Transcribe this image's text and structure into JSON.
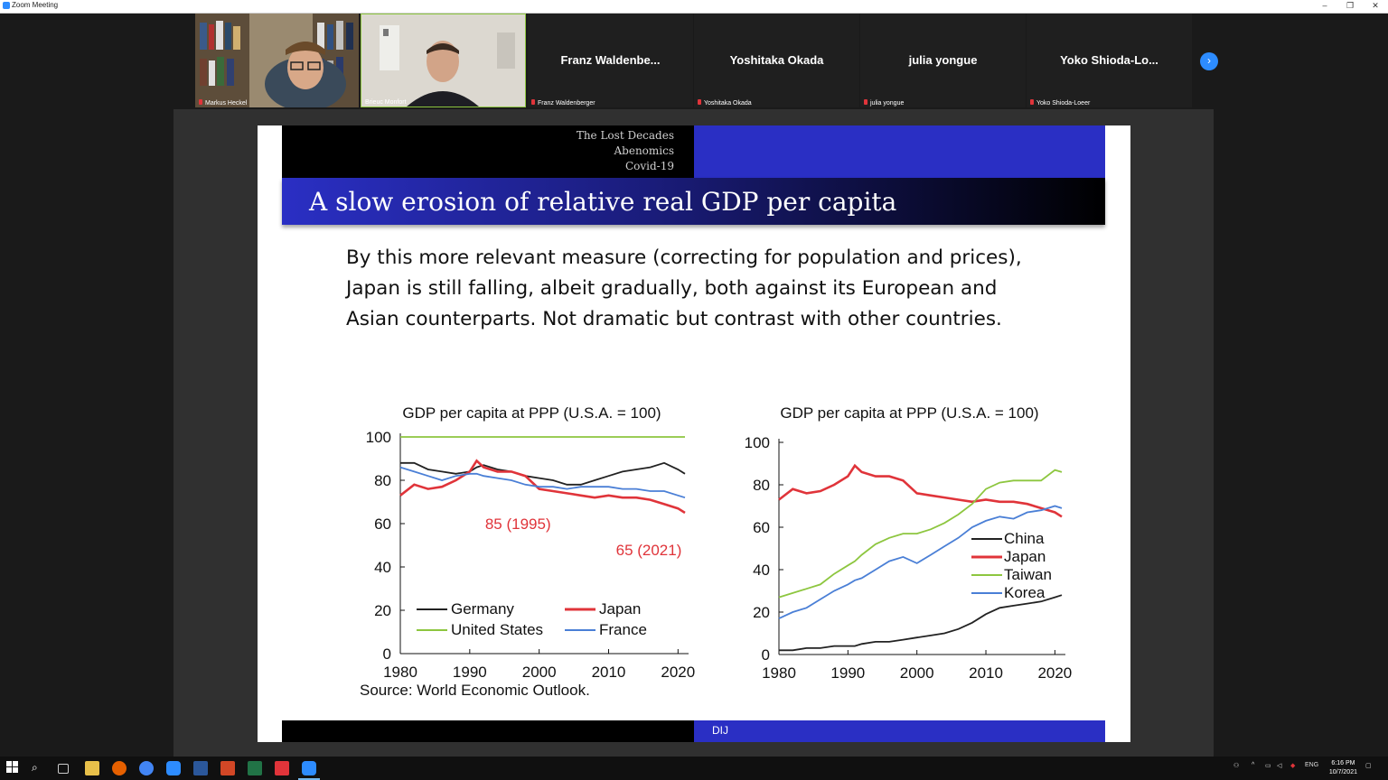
{
  "window": {
    "title": "Zoom Meeting",
    "min": "–",
    "restore": "❐",
    "close": "✕"
  },
  "participants": [
    {
      "label": "Markus Heckel"
    },
    {
      "label": "Brieuc Monfort"
    },
    {
      "display": "Franz  Waldenbe...",
      "label": "Franz Waldenberger"
    },
    {
      "display": "Yoshitaka Okada",
      "label": "Yoshitaka Okada"
    },
    {
      "display": "julia yongue",
      "label": "julia yongue"
    },
    {
      "display": "Yoko  Shioda-Lo...",
      "label": "Yoko Shioda-Loeer"
    }
  ],
  "gallery_next_icon": "chevron-right-icon",
  "slide": {
    "sections": [
      "The Lost Decades",
      "Abenomics",
      "Covid-19"
    ],
    "title": "A slow erosion of relative real GDP per capita",
    "body": "By this more relevant measure (correcting for population and prices), Japan is still falling, albeit gradually, both against its European and Asian counterparts. Not dramatic but contrast with other countries.",
    "footer": "DIJ",
    "source": "Source: World Economic Outlook."
  },
  "chart_data": [
    {
      "type": "line",
      "title": "GDP per capita at PPP (U.S.A. = 100)",
      "xlim": [
        1980,
        2021
      ],
      "ylim": [
        0,
        100
      ],
      "xticks": [
        1980,
        1990,
        2000,
        2010,
        2020
      ],
      "yticks": [
        0,
        20,
        40,
        60,
        80,
        100
      ],
      "annotations": [
        {
          "text": "85 (1995)",
          "color": "#e0343a"
        },
        {
          "text": "65 (2021)",
          "color": "#e0343a"
        }
      ],
      "legend": [
        "Germany",
        "Japan",
        "United States",
        "France"
      ],
      "legend_position": "bottom",
      "x": [
        1980,
        1982,
        1984,
        1986,
        1988,
        1990,
        1991,
        1992,
        1994,
        1996,
        1998,
        2000,
        2002,
        2004,
        2006,
        2008,
        2010,
        2012,
        2014,
        2016,
        2018,
        2020,
        2021
      ],
      "series": [
        {
          "name": "Germany",
          "color": "#222222",
          "values": [
            88,
            88,
            85,
            84,
            83,
            84,
            86,
            87,
            85,
            84,
            82,
            81,
            80,
            78,
            78,
            80,
            82,
            84,
            85,
            86,
            88,
            85,
            83
          ]
        },
        {
          "name": "Japan",
          "color": "#e0343a",
          "values": [
            73,
            78,
            76,
            77,
            80,
            84,
            89,
            86,
            84,
            84,
            82,
            76,
            75,
            74,
            73,
            72,
            73,
            72,
            72,
            71,
            69,
            67,
            65
          ]
        },
        {
          "name": "United States",
          "color": "#8dc63f",
          "values": [
            100,
            100,
            100,
            100,
            100,
            100,
            100,
            100,
            100,
            100,
            100,
            100,
            100,
            100,
            100,
            100,
            100,
            100,
            100,
            100,
            100,
            100,
            100
          ]
        },
        {
          "name": "France",
          "color": "#4a7fd6",
          "values": [
            86,
            84,
            82,
            80,
            82,
            83,
            83,
            82,
            81,
            80,
            78,
            77,
            77,
            76,
            77,
            77,
            77,
            76,
            76,
            75,
            75,
            73,
            72
          ]
        }
      ]
    },
    {
      "type": "line",
      "title": "GDP per capita at PPP (U.S.A. = 100)",
      "xlim": [
        1980,
        2021
      ],
      "ylim": [
        0,
        100
      ],
      "xticks": [
        1980,
        1990,
        2000,
        2010,
        2020
      ],
      "yticks": [
        0,
        20,
        40,
        60,
        80,
        100
      ],
      "legend": [
        "China",
        "Japan",
        "Taiwan",
        "Korea"
      ],
      "legend_position": "right",
      "x": [
        1980,
        1982,
        1984,
        1986,
        1988,
        1990,
        1991,
        1992,
        1994,
        1996,
        1998,
        2000,
        2002,
        2004,
        2006,
        2008,
        2010,
        2012,
        2014,
        2016,
        2018,
        2020,
        2021
      ],
      "series": [
        {
          "name": "China",
          "color": "#222222",
          "values": [
            2,
            2,
            3,
            3,
            4,
            4,
            4,
            5,
            6,
            6,
            7,
            8,
            9,
            10,
            12,
            15,
            19,
            22,
            23,
            24,
            25,
            27,
            28
          ]
        },
        {
          "name": "Japan",
          "color": "#e0343a",
          "values": [
            73,
            78,
            76,
            77,
            80,
            84,
            89,
            86,
            84,
            84,
            82,
            76,
            75,
            74,
            73,
            72,
            73,
            72,
            72,
            71,
            69,
            67,
            65
          ]
        },
        {
          "name": "Taiwan",
          "color": "#8dc63f",
          "values": [
            27,
            29,
            31,
            33,
            38,
            42,
            44,
            47,
            52,
            55,
            57,
            57,
            59,
            62,
            66,
            71,
            78,
            81,
            82,
            82,
            82,
            87,
            86
          ]
        },
        {
          "name": "Korea",
          "color": "#4a7fd6",
          "values": [
            17,
            20,
            22,
            26,
            30,
            33,
            35,
            36,
            40,
            44,
            46,
            43,
            47,
            51,
            55,
            60,
            63,
            65,
            64,
            67,
            68,
            70,
            69
          ]
        }
      ]
    }
  ],
  "taskbar": {
    "icons": [
      "windows-start-icon",
      "search-icon",
      "task-view-icon",
      "file-explorer-icon",
      "firefox-icon",
      "chrome-icon",
      "zoom-icon",
      "word-icon",
      "powerpoint-icon",
      "excel-icon",
      "acrobat-icon",
      "zoom-active-icon"
    ],
    "lang": "ENG",
    "time": "6:16 PM",
    "date": "10/7/2021"
  }
}
